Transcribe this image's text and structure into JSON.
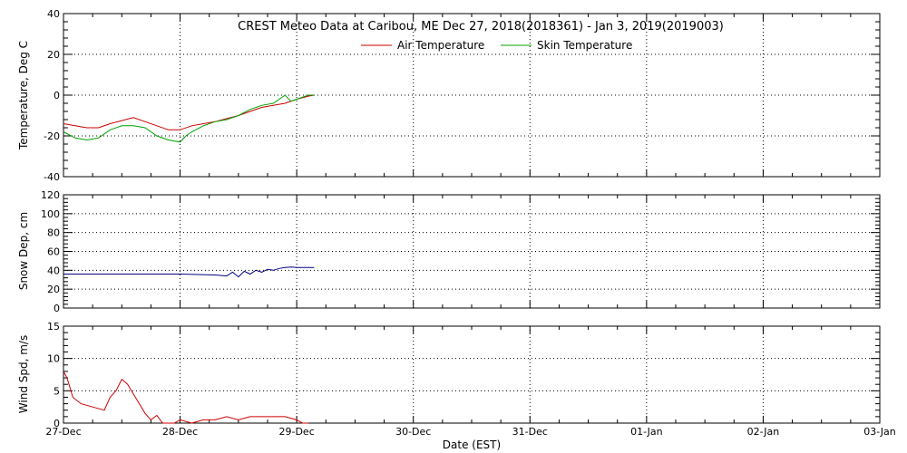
{
  "chart_data": {
    "type": "line",
    "title": "CREST Meteo Data at Caribou, ME   Dec 27, 2018(2018361) - Jan  3, 2019(2019003)",
    "xlabel": "Date (EST)",
    "x_tick_labels": [
      "27-Dec",
      "28-Dec",
      "29-Dec",
      "30-Dec",
      "31-Dec",
      "01-Jan",
      "02-Jan",
      "03-Jan"
    ],
    "xlim": [
      0,
      7
    ],
    "grid": true,
    "panels": [
      {
        "ylabel": "Temperature, Deg C",
        "ylim": [
          -40,
          40
        ],
        "yticks": [
          -40,
          -20,
          0,
          20,
          40
        ],
        "legend_position": "top-center",
        "series": [
          {
            "name": "Air Temperature",
            "color": "#cc0000",
            "x": [
              0,
              0.1,
              0.2,
              0.3,
              0.4,
              0.5,
              0.6,
              0.7,
              0.8,
              0.9,
              1.0,
              1.1,
              1.2,
              1.3,
              1.4,
              1.5,
              1.6,
              1.7,
              1.8,
              1.9,
              2.0,
              2.1,
              2.15
            ],
            "y": [
              -14,
              -15,
              -16,
              -16,
              -14,
              -12.5,
              -11,
              -13,
              -15,
              -17,
              -17,
              -15,
              -14,
              -13,
              -11.5,
              -10,
              -8,
              -6,
              -5,
              -4,
              -2,
              -0.5,
              0
            ]
          },
          {
            "name": "Skin Temperature",
            "color": "#00a000",
            "x": [
              0,
              0.1,
              0.2,
              0.3,
              0.4,
              0.5,
              0.6,
              0.7,
              0.8,
              0.9,
              1.0,
              1.05,
              1.1,
              1.2,
              1.3,
              1.4,
              1.5,
              1.6,
              1.7,
              1.8,
              1.9,
              1.95,
              2.0,
              2.1,
              2.15
            ],
            "y": [
              -18,
              -21,
              -22,
              -21,
              -17,
              -15,
              -15,
              -16,
              -20,
              -22,
              -23,
              -20,
              -18,
              -15,
              -13,
              -12,
              -10,
              -7,
              -5,
              -4,
              0,
              -3,
              -2,
              0,
              0
            ]
          }
        ]
      },
      {
        "ylabel": "Snow Dep, cm",
        "ylim": [
          0,
          120
        ],
        "yticks": [
          0,
          20,
          40,
          60,
          80,
          100,
          120
        ],
        "series": [
          {
            "name": "",
            "color": "#000080",
            "x": [
              0,
              0.5,
              1.0,
              1.3,
              1.4,
              1.45,
              1.5,
              1.55,
              1.6,
              1.65,
              1.7,
              1.75,
              1.8,
              1.85,
              1.9,
              1.95,
              2.0,
              2.1,
              2.15
            ],
            "y": [
              36,
              36,
              36,
              35,
              34,
              38,
              33,
              39,
              36,
              40,
              38,
              41,
              40,
              42,
              43,
              43.5,
              43,
              43,
              43
            ]
          }
        ]
      },
      {
        "ylabel": "Wind Spd, m/s",
        "ylim": [
          0,
          15
        ],
        "yticks": [
          0,
          5,
          10,
          15
        ],
        "series": [
          {
            "name": "",
            "color": "#cc0000",
            "x": [
              0,
              0.03,
              0.08,
              0.15,
              0.25,
              0.35,
              0.4,
              0.45,
              0.5,
              0.55,
              0.6,
              0.65,
              0.7,
              0.75,
              0.8,
              0.85,
              0.9,
              0.95,
              1.0,
              1.1,
              1.2,
              1.3,
              1.4,
              1.5,
              1.6,
              1.7,
              1.8,
              1.9,
              2.0,
              2.05,
              2.1
            ],
            "y": [
              8,
              7,
              4,
              3,
              2.5,
              2,
              4,
              5,
              6.8,
              6,
              4.5,
              3,
              1.5,
              0.5,
              1.2,
              0,
              0,
              0,
              0.5,
              0,
              0.5,
              0.5,
              1,
              0.5,
              1,
              1,
              1,
              1,
              0.5,
              0,
              0
            ]
          }
        ]
      }
    ]
  }
}
